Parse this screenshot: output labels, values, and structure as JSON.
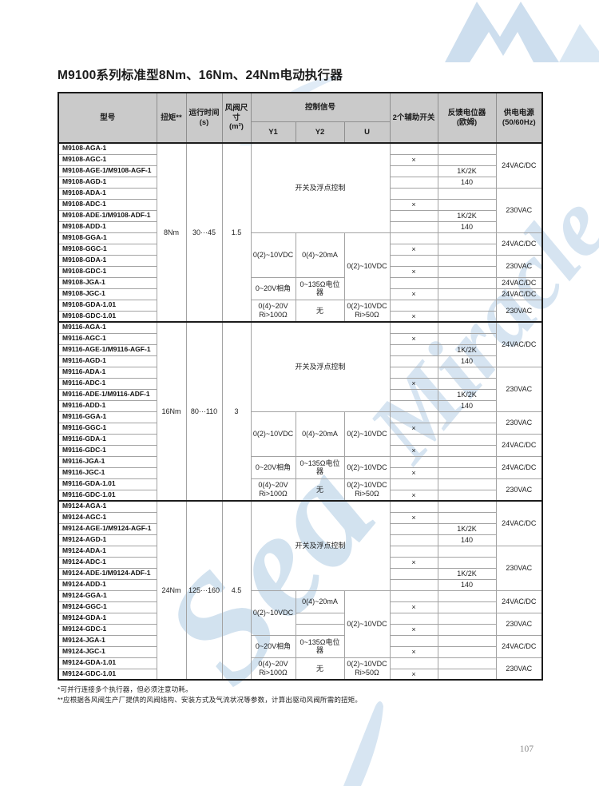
{
  "page": {
    "title": "M9100系列标准型8Nm、16Nm、24Nm电动执行器",
    "page_number": "107",
    "footnotes": [
      "*可并行连接多个执行器，但必须注意功耗。",
      "**应根据各风阀生产厂提供的风阀结构、安装方式及气流状况等参数，计算出驱动风阀所需的扭矩。"
    ],
    "watermark": {
      "text_1": "Sea",
      "text_2": "Miracle",
      "color": "#cddff0"
    }
  },
  "table": {
    "header": {
      "model": "型号",
      "torque": "扭矩**",
      "runtime": "运行时间\n(s)",
      "size": "风阀尺寸\n(m²)",
      "control": "控制信号",
      "y1": "Y1",
      "y2": "Y2",
      "u": "U",
      "aux": "2个辅助开关",
      "feedback": "反馈电位器\n(欧姆)",
      "power": "供电电源\n(50/60Hz)"
    },
    "sections": [
      {
        "id": "m9108",
        "rows": [
          [
            {
              "t": "M9108-AGA-1",
              "k": "model"
            },
            {
              "t": "8Nm",
              "rs": 16
            },
            {
              "t": "30···45",
              "rs": 16
            },
            {
              "t": "1.5",
              "rs": 16
            },
            {
              "t": "开关及浮点控制",
              "cs": 3,
              "rs": 8
            },
            {
              "t": ""
            },
            {
              "t": ""
            },
            {
              "t": "24VAC/DC",
              "rs": 4
            }
          ],
          [
            {
              "t": "M9108-AGC-1",
              "k": "model"
            },
            {
              "t": "×"
            },
            {
              "t": ""
            }
          ],
          [
            {
              "t": "M9108-AGE-1/M9108-AGF-1",
              "k": "model"
            },
            {
              "t": ""
            },
            {
              "t": "1K/2K"
            }
          ],
          [
            {
              "t": "M9108-AGD-1",
              "k": "model"
            },
            {
              "t": ""
            },
            {
              "t": "140"
            }
          ],
          [
            {
              "t": "M9108-ADA-1",
              "k": "model"
            },
            {
              "t": ""
            },
            {
              "t": ""
            },
            {
              "t": "230VAC",
              "rs": 4
            }
          ],
          [
            {
              "t": "M9108-ADC-1",
              "k": "model"
            },
            {
              "t": "×"
            },
            {
              "t": ""
            }
          ],
          [
            {
              "t": "M9108-ADE-1/M9108-ADF-1",
              "k": "model"
            },
            {
              "t": ""
            },
            {
              "t": "1K/2K"
            }
          ],
          [
            {
              "t": "M9108-ADD-1",
              "k": "model"
            },
            {
              "t": ""
            },
            {
              "t": "140"
            }
          ],
          [
            {
              "t": "M9108-GGA-1",
              "k": "model"
            },
            {
              "t": "0(2)~10VDC",
              "rs": 4
            },
            {
              "t": "0(4)~20mA",
              "rs": 4
            },
            {
              "t": "0(2)~10VDC",
              "rs": 6
            },
            {
              "t": ""
            },
            {
              "t": ""
            },
            {
              "t": "24VAC/DC",
              "rs": 2
            }
          ],
          [
            {
              "t": "M9108-GGC-1",
              "k": "model"
            },
            {
              "t": "×"
            },
            {
              "t": ""
            }
          ],
          [
            {
              "t": "M9108-GDA-1",
              "k": "model"
            },
            {
              "t": ""
            },
            {
              "t": ""
            },
            {
              "t": "230VAC",
              "rs": 2
            }
          ],
          [
            {
              "t": "M9108-GDC-1",
              "k": "model"
            },
            {
              "t": "×"
            },
            {
              "t": ""
            }
          ],
          [
            {
              "t": "M9108-JGA-1",
              "k": "model"
            },
            {
              "t": "0~20V相角",
              "rs": 2
            },
            {
              "t": "0~135Ω电位器",
              "rs": 2
            },
            {
              "t": ""
            },
            {
              "t": ""
            },
            {
              "t": "24VAC/DC"
            }
          ],
          [
            {
              "t": "M9108-JGC-1",
              "k": "model"
            },
            {
              "t": "×"
            },
            {
              "t": ""
            },
            {
              "t": "24VAC/DC"
            }
          ],
          [
            {
              "t": "M9108-GDA-1.01",
              "k": "model"
            },
            {
              "t": "0(4)~20V\nRi>100Ω",
              "rs": 2
            },
            {
              "t": "无",
              "rs": 2
            },
            {
              "t": "0(2)~10VDC\nRi>50Ω",
              "rs": 2
            },
            {
              "t": ""
            },
            {
              "t": ""
            },
            {
              "t": "230VAC",
              "rs": 2
            }
          ],
          [
            {
              "t": "M9108-GDC-1.01",
              "k": "model"
            },
            {
              "t": "×"
            },
            {
              "t": ""
            }
          ]
        ]
      },
      {
        "id": "m9116",
        "rows": [
          [
            {
              "t": "M9116-AGA-1",
              "k": "model"
            },
            {
              "t": "16Nm",
              "rs": 16
            },
            {
              "t": "80···110",
              "rs": 16
            },
            {
              "t": "3",
              "rs": 16
            },
            {
              "t": "开关及浮点控制",
              "cs": 3,
              "rs": 8
            },
            {
              "t": ""
            },
            {
              "t": ""
            },
            {
              "t": "24VAC/DC",
              "rs": 4
            }
          ],
          [
            {
              "t": "M9116-AGC-1",
              "k": "model"
            },
            {
              "t": "×"
            },
            {
              "t": ""
            }
          ],
          [
            {
              "t": "M9116-AGE-1/M9116-AGF-1",
              "k": "model"
            },
            {
              "t": ""
            },
            {
              "t": "1K/2K"
            }
          ],
          [
            {
              "t": "M9116-AGD-1",
              "k": "model"
            },
            {
              "t": ""
            },
            {
              "t": "140"
            }
          ],
          [
            {
              "t": "M9116-ADA-1",
              "k": "model"
            },
            {
              "t": ""
            },
            {
              "t": ""
            },
            {
              "t": "230VAC",
              "rs": 4
            }
          ],
          [
            {
              "t": "M9116-ADC-1",
              "k": "model"
            },
            {
              "t": "×"
            },
            {
              "t": ""
            }
          ],
          [
            {
              "t": "M9116-ADE-1/M9116-ADF-1",
              "k": "model"
            },
            {
              "t": ""
            },
            {
              "t": "1K/2K"
            }
          ],
          [
            {
              "t": "M9116-ADD-1",
              "k": "model"
            },
            {
              "t": ""
            },
            {
              "t": "140"
            }
          ],
          [
            {
              "t": "M9116-GGA-1",
              "k": "model"
            },
            {
              "t": "0(2)~10VDC",
              "rs": 4
            },
            {
              "t": "0(4)~20mA",
              "rs": 4
            },
            {
              "t": "0(2)~10VDC",
              "rs": 4
            },
            {
              "t": ""
            },
            {
              "t": ""
            },
            {
              "t": "230VAC",
              "rs": 2
            }
          ],
          [
            {
              "t": "M9116-GGC-1",
              "k": "model"
            },
            {
              "t": "×"
            },
            {
              "t": ""
            }
          ],
          [
            {
              "t": "M9116-GDA-1",
              "k": "model"
            },
            {
              "t": ""
            },
            {
              "t": ""
            },
            {
              "t": "24VAC/DC",
              "rs": 2
            }
          ],
          [
            {
              "t": "M9116-GDC-1",
              "k": "model"
            },
            {
              "t": "×"
            },
            {
              "t": ""
            }
          ],
          [
            {
              "t": "M9116-JGA-1",
              "k": "model"
            },
            {
              "t": "0~20V相角",
              "rs": 2
            },
            {
              "t": "0~135Ω电位器",
              "rs": 2
            },
            {
              "t": "0(2)~10VDC",
              "rs": 2
            },
            {
              "t": ""
            },
            {
              "t": ""
            },
            {
              "t": "24VAC/DC",
              "rs": 2
            }
          ],
          [
            {
              "t": "M9116-JGC-1",
              "k": "model"
            },
            {
              "t": "×"
            },
            {
              "t": ""
            }
          ],
          [
            {
              "t": "M9116-GDA-1.01",
              "k": "model"
            },
            {
              "t": "0(4)~20V\nRi>100Ω",
              "rs": 2
            },
            {
              "t": "无",
              "rs": 2
            },
            {
              "t": "0(2)~10VDC\nRi>50Ω",
              "rs": 2
            },
            {
              "t": ""
            },
            {
              "t": ""
            },
            {
              "t": "230VAC",
              "rs": 2
            }
          ],
          [
            {
              "t": "M9116-GDC-1.01",
              "k": "model"
            },
            {
              "t": "×"
            },
            {
              "t": ""
            }
          ]
        ]
      },
      {
        "id": "m9124",
        "rows": [
          [
            {
              "t": "M9124-AGA-1",
              "k": "model"
            },
            {
              "t": "24Nm",
              "rs": 16
            },
            {
              "t": "125···160",
              "rs": 16
            },
            {
              "t": "4.5",
              "rs": 16
            },
            {
              "t": "开关及浮点控制",
              "cs": 3,
              "rs": 8
            },
            {
              "t": ""
            },
            {
              "t": ""
            },
            {
              "t": "24VAC/DC",
              "rs": 4
            }
          ],
          [
            {
              "t": "M9124-AGC-1",
              "k": "model"
            },
            {
              "t": "×"
            },
            {
              "t": ""
            }
          ],
          [
            {
              "t": "M9124-AGE-1/M9124-AGF-1",
              "k": "model"
            },
            {
              "t": ""
            },
            {
              "t": "1K/2K"
            }
          ],
          [
            {
              "t": "M9124-AGD-1",
              "k": "model"
            },
            {
              "t": ""
            },
            {
              "t": "140"
            }
          ],
          [
            {
              "t": "M9124-ADA-1",
              "k": "model"
            },
            {
              "t": ""
            },
            {
              "t": ""
            },
            {
              "t": "230VAC",
              "rs": 4
            }
          ],
          [
            {
              "t": "M9124-ADC-1",
              "k": "model"
            },
            {
              "t": "×"
            },
            {
              "t": ""
            }
          ],
          [
            {
              "t": "M9124-ADE-1/M9124-ADF-1",
              "k": "model"
            },
            {
              "t": ""
            },
            {
              "t": "1K/2K"
            }
          ],
          [
            {
              "t": "M9124-ADD-1",
              "k": "model"
            },
            {
              "t": ""
            },
            {
              "t": "140"
            }
          ],
          [
            {
              "t": "M9124-GGA-1",
              "k": "model"
            },
            {
              "t": "0(2)~10VDC",
              "rs": 4
            },
            {
              "t": "0(4)~20mA",
              "rs": 2
            },
            {
              "t": "0(2)~10VDC",
              "rs": 6
            },
            {
              "t": ""
            },
            {
              "t": ""
            },
            {
              "t": "24VAC/DC",
              "rs": 2
            }
          ],
          [
            {
              "t": "M9124-GGC-1",
              "k": "model"
            },
            {
              "t": "×"
            },
            {
              "t": ""
            }
          ],
          [
            {
              "t": "M9124-GDA-1",
              "k": "model"
            },
            {
              "t": ""
            },
            {
              "t": ""
            },
            {
              "t": ""
            },
            {
              "t": "230VAC",
              "rs": 2
            }
          ],
          [
            {
              "t": "M9124-GDC-1",
              "k": "model"
            },
            {
              "t": ""
            },
            {
              "t": "×"
            },
            {
              "t": ""
            }
          ],
          [
            {
              "t": "M9124-JGA-1",
              "k": "model"
            },
            {
              "t": "0~20V相角",
              "rs": 2
            },
            {
              "t": "0~135Ω电位器",
              "rs": 2
            },
            {
              "t": ""
            },
            {
              "t": ""
            },
            {
              "t": "24VAC/DC",
              "rs": 2
            }
          ],
          [
            {
              "t": "M9124-JGC-1",
              "k": "model"
            },
            {
              "t": "×"
            },
            {
              "t": ""
            }
          ],
          [
            {
              "t": "M9124-GDA-1.01",
              "k": "model"
            },
            {
              "t": "0(4)~20V\nRi>100Ω",
              "rs": 2
            },
            {
              "t": "无",
              "rs": 2
            },
            {
              "t": "0(2)~10VDC\nRi>50Ω",
              "rs": 2
            },
            {
              "t": ""
            },
            {
              "t": ""
            },
            {
              "t": "230VAC",
              "rs": 2
            }
          ],
          [
            {
              "t": "M9124-GDC-1.01",
              "k": "model"
            },
            {
              "t": "×"
            },
            {
              "t": ""
            }
          ]
        ]
      }
    ]
  }
}
